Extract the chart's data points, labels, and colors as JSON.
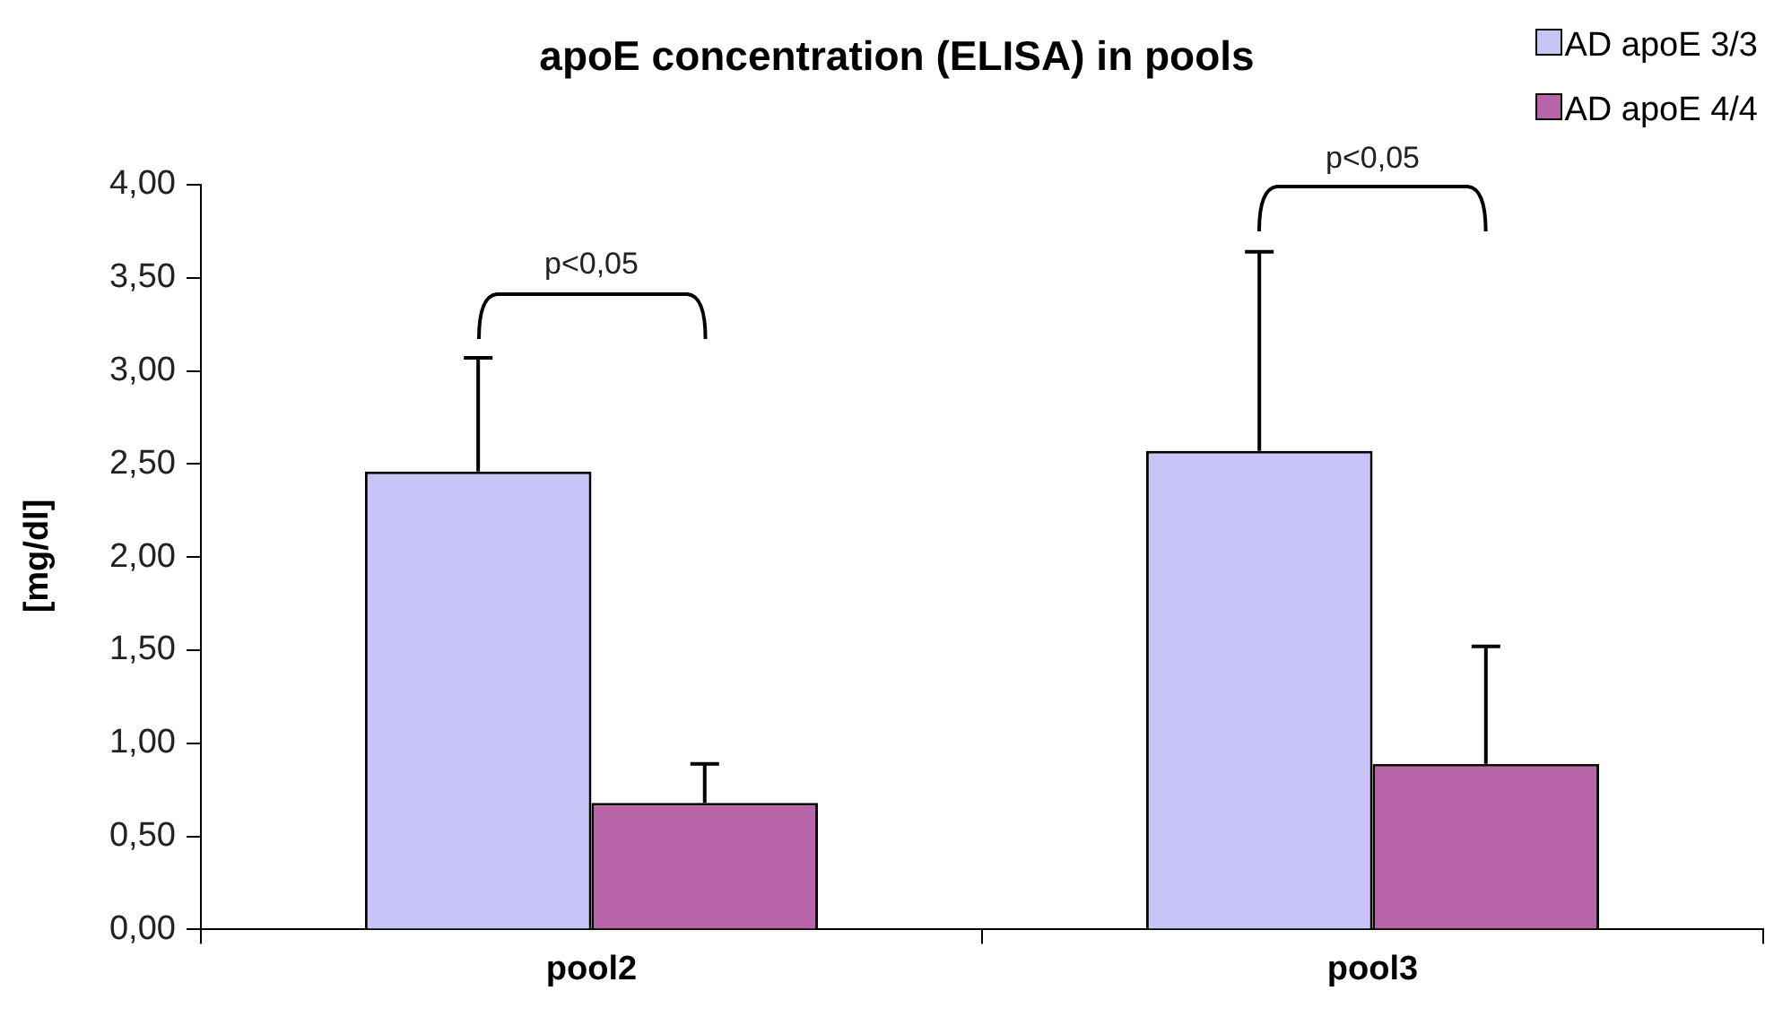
{
  "chart_data": {
    "type": "bar",
    "title": "apoE concentration (ELISA) in pools",
    "ylabel": "[mg/dl]",
    "categories": [
      "pool2",
      "pool3"
    ],
    "series": [
      {
        "name": "AD apoE 3/3",
        "color": "#c8c4f8",
        "values": [
          2.46,
          2.57
        ],
        "errors": [
          [
            2.46,
            3.07
          ],
          [
            2.57,
            3.64
          ]
        ]
      },
      {
        "name": "AD apoE 4/4",
        "color": "#b864a8",
        "values": [
          0.68,
          0.89
        ],
        "errors": [
          [
            0.68,
            0.89
          ],
          [
            0.89,
            1.52
          ]
        ]
      }
    ],
    "ylim": [
      0,
      4
    ],
    "yticks": [
      {
        "value": 0,
        "label": "0,00"
      },
      {
        "value": 0.5,
        "label": "0,50"
      },
      {
        "value": 1,
        "label": "1,00"
      },
      {
        "value": 1.5,
        "label": "1,50"
      },
      {
        "value": 2,
        "label": "2,00"
      },
      {
        "value": 2.5,
        "label": "2,50"
      },
      {
        "value": 3,
        "label": "3,00"
      },
      {
        "value": 3.5,
        "label": "3,50"
      },
      {
        "value": 4,
        "label": "4,00"
      }
    ],
    "grid": false,
    "legend": "top right",
    "annotations": [
      "p<0,05",
      "p<0,05"
    ]
  }
}
